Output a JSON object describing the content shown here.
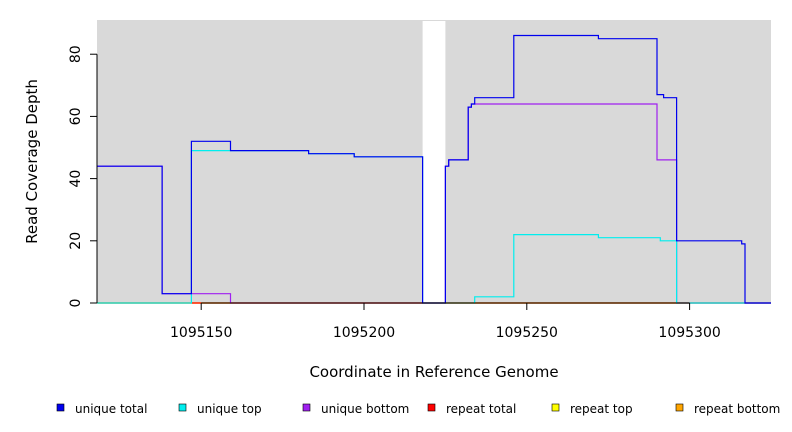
{
  "chart_data": {
    "type": "line",
    "title": "",
    "xlabel": "Coordinate in Reference Genome",
    "ylabel": "Read Coverage Depth",
    "xlim": [
      1095118,
      1095325
    ],
    "ylim": [
      0,
      91
    ],
    "xticks": [
      1095150,
      1095200,
      1095250,
      1095300
    ],
    "yticks": [
      0,
      20,
      40,
      60,
      80
    ],
    "grid": false,
    "background": "#d9d9d9",
    "gap": {
      "x_start": 1095218,
      "x_end": 1095225
    },
    "legend_position": "bottom",
    "series": [
      {
        "name": "unique total",
        "color": "#0000ee",
        "step_points": [
          [
            1095118,
            44
          ],
          [
            1095138,
            3
          ],
          [
            1095147,
            52
          ],
          [
            1095159,
            49
          ],
          [
            1095183,
            48
          ],
          [
            1095197,
            47
          ],
          [
            1095218,
            0
          ],
          [
            1095225,
            44
          ],
          [
            1095226,
            46
          ],
          [
            1095232,
            63
          ],
          [
            1095233,
            64
          ],
          [
            1095234,
            66
          ],
          [
            1095246,
            86
          ],
          [
            1095272,
            85
          ],
          [
            1095290,
            67
          ],
          [
            1095292,
            66
          ],
          [
            1095296,
            20
          ],
          [
            1095316,
            19
          ],
          [
            1095317,
            0
          ],
          [
            1095325,
            0
          ]
        ]
      },
      {
        "name": "unique top",
        "color": "#00eeee",
        "step_points": [
          [
            1095118,
            0
          ],
          [
            1095147,
            49
          ],
          [
            1095159,
            49
          ],
          [
            1095183,
            48
          ],
          [
            1095197,
            47
          ],
          [
            1095218,
            0
          ],
          [
            1095234,
            2
          ],
          [
            1095246,
            22
          ],
          [
            1095272,
            21
          ],
          [
            1095291,
            20
          ],
          [
            1095296,
            0
          ],
          [
            1095325,
            0
          ]
        ]
      },
      {
        "name": "unique bottom",
        "color": "#a020f0",
        "step_points": [
          [
            1095118,
            44
          ],
          [
            1095138,
            3
          ],
          [
            1095159,
            0
          ],
          [
            1095225,
            44
          ],
          [
            1095226,
            46
          ],
          [
            1095232,
            63
          ],
          [
            1095233,
            64
          ],
          [
            1095290,
            46
          ],
          [
            1095296,
            0
          ],
          [
            1095325,
            0
          ]
        ]
      },
      {
        "name": "repeat total",
        "color": "#ff0000",
        "step_points": [
          [
            1095118,
            0
          ],
          [
            1095325,
            0
          ]
        ]
      },
      {
        "name": "repeat top",
        "color": "#ffff00",
        "step_points": [
          [
            1095118,
            0
          ],
          [
            1095325,
            0
          ]
        ]
      },
      {
        "name": "repeat bottom",
        "color": "#ffa500",
        "step_points": [
          [
            1095118,
            0
          ],
          [
            1095325,
            0
          ]
        ]
      }
    ],
    "draw_order": [
      4,
      5,
      3,
      2,
      1,
      0
    ]
  }
}
